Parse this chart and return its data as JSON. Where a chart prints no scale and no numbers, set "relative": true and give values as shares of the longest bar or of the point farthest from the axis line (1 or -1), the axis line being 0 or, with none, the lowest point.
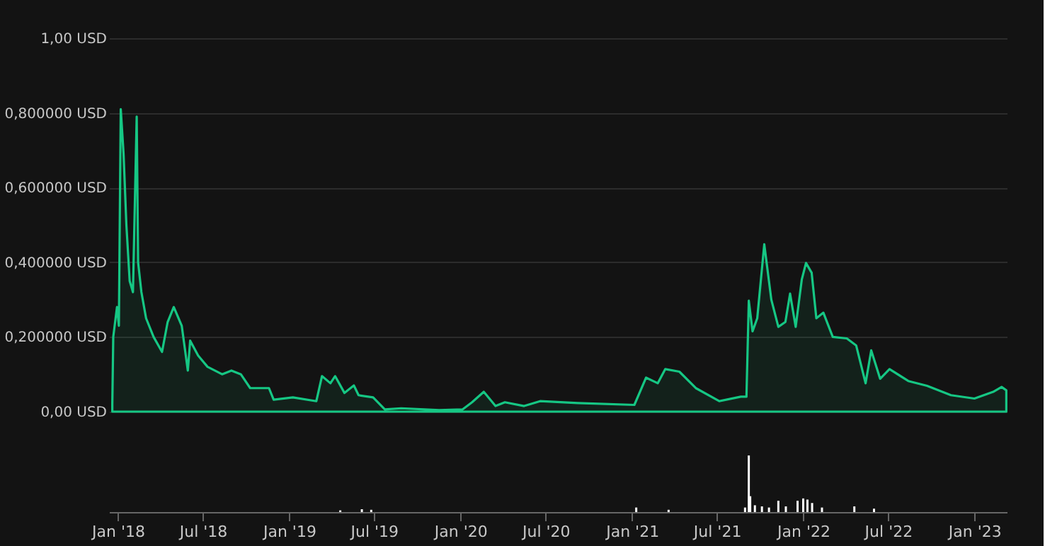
{
  "chart_data": [
    {
      "type": "area",
      "tick_labels": "y",
      "grid": "y",
      "xlim": [
        "2017-12-13",
        "2023-03-11"
      ],
      "ylim": [
        0,
        1
      ],
      "yticks": [
        {
          "value": 0,
          "label": "0,00 USD"
        },
        {
          "value": 0.2,
          "label": "0,200000 USD"
        },
        {
          "value": 0.4,
          "label": "0,400000 USD"
        },
        {
          "value": 0.6,
          "label": "0,600000 USD"
        },
        {
          "value": 0.8,
          "label": "0,800000 USD"
        },
        {
          "value": 1,
          "label": "1,00 USD"
        }
      ],
      "x": [
        "2017-12-20",
        "2017-12-22",
        "2017-12-30",
        "2018-01-03",
        "2018-01-07",
        "2018-01-13",
        "2018-01-19",
        "2018-01-26",
        "2018-02-02",
        "2018-02-10",
        "2018-02-13",
        "2018-02-20",
        "2018-03-02",
        "2018-03-18",
        "2018-04-05",
        "2018-04-17",
        "2018-04-30",
        "2018-05-17",
        "2018-05-30",
        "2018-06-04",
        "2018-06-21",
        "2018-07-11",
        "2018-08-11",
        "2018-08-31",
        "2018-09-20",
        "2018-10-10",
        "2018-11-19",
        "2018-11-29",
        "2019-01-09",
        "2019-02-28",
        "2019-03-12",
        "2019-03-30",
        "2019-04-09",
        "2019-04-29",
        "2019-05-19",
        "2019-05-29",
        "2019-06-29",
        "2019-07-24",
        "2019-08-28",
        "2019-11-17",
        "2020-01-06",
        "2020-01-26",
        "2020-02-20",
        "2020-03-16",
        "2020-04-05",
        "2020-05-16",
        "2020-06-19",
        "2020-09-07",
        "2021-01-06",
        "2021-01-31",
        "2021-02-25",
        "2021-03-13",
        "2021-04-12",
        "2021-05-17",
        "2021-07-06",
        "2021-08-21",
        "2021-09-02",
        "2021-09-07",
        "2021-09-15",
        "2021-09-25",
        "2021-10-10",
        "2021-10-25",
        "2021-11-09",
        "2021-11-24",
        "2021-12-04",
        "2021-12-16",
        "2021-12-29",
        "2022-01-07",
        "2022-01-19",
        "2022-01-29",
        "2022-02-13",
        "2022-03-05",
        "2022-04-04",
        "2022-04-24",
        "2022-05-14",
        "2022-05-26",
        "2022-06-14",
        "2022-07-04",
        "2022-08-13",
        "2022-09-22",
        "2022-11-12",
        "2023-01-01",
        "2023-02-10",
        "2023-02-28",
        "2023-03-10"
      ],
      "series": [
        {
          "color": "#16c784",
          "values": [
            0.02,
            0.2,
            0.28,
            0.23,
            0.81,
            0.69,
            0.5,
            0.35,
            0.32,
            0.79,
            0.4,
            0.32,
            0.25,
            0.2,
            0.16,
            0.24,
            0.28,
            0.23,
            0.11,
            0.19,
            0.15,
            0.12,
            0.1,
            0.11,
            0.1,
            0.063,
            0.063,
            0.032,
            0.038,
            0.028,
            0.095,
            0.076,
            0.095,
            0.05,
            0.07,
            0.044,
            0.038,
            0.006,
            0.009,
            0.004,
            0.006,
            0.025,
            0.053,
            0.015,
            0.025,
            0.015,
            0.028,
            0.023,
            0.018,
            0.091,
            0.076,
            0.114,
            0.107,
            0.063,
            0.028,
            0.04,
            0.04,
            0.297,
            0.215,
            0.25,
            0.448,
            0.3,
            0.227,
            0.24,
            0.316,
            0.227,
            0.354,
            0.398,
            0.372,
            0.25,
            0.265,
            0.2,
            0.196,
            0.177,
            0.076,
            0.164,
            0.088,
            0.114,
            0.082,
            0.069,
            0.044,
            0.035,
            0.053,
            0.066,
            0.057
          ]
        }
      ]
    },
    {
      "type": "bar",
      "relative": true,
      "tick_labels": "x",
      "xlim": [
        "2017-12-13",
        "2023-03-11"
      ],
      "xticks": [
        {
          "value": "2018-01-01",
          "label": "Jan '18"
        },
        {
          "value": "2018-07-01",
          "label": "Jul '18"
        },
        {
          "value": "2019-01-01",
          "label": "Jan '19"
        },
        {
          "value": "2019-07-01",
          "label": "Jul '19"
        },
        {
          "value": "2020-01-01",
          "label": "Jan '20"
        },
        {
          "value": "2020-07-01",
          "label": "Jul '20"
        },
        {
          "value": "2021-01-01",
          "label": "Jan '21"
        },
        {
          "value": "2021-07-01",
          "label": "Jul '21"
        },
        {
          "value": "2022-01-01",
          "label": "Jan '22"
        },
        {
          "value": "2022-07-01",
          "label": "Jul '22"
        },
        {
          "value": "2023-01-01",
          "label": "Jan '23"
        }
      ],
      "x": [
        "2019-04-20",
        "2019-06-05",
        "2019-06-25",
        "2021-01-10",
        "2021-03-20",
        "2021-08-30",
        "2021-09-07",
        "2021-09-10",
        "2021-09-20",
        "2021-10-05",
        "2021-10-20",
        "2021-11-09",
        "2021-11-25",
        "2021-12-20",
        "2022-01-01",
        "2022-01-10",
        "2022-01-20",
        "2022-02-10",
        "2022-04-20",
        "2022-06-01"
      ],
      "series": [
        {
          "color": "#ffffff",
          "values": [
            0.03,
            0.05,
            0.04,
            0.08,
            0.04,
            0.08,
            1,
            0.28,
            0.12,
            0.1,
            0.08,
            0.2,
            0.1,
            0.2,
            0.24,
            0.22,
            0.16,
            0.08,
            0.1,
            0.06
          ]
        }
      ]
    }
  ]
}
